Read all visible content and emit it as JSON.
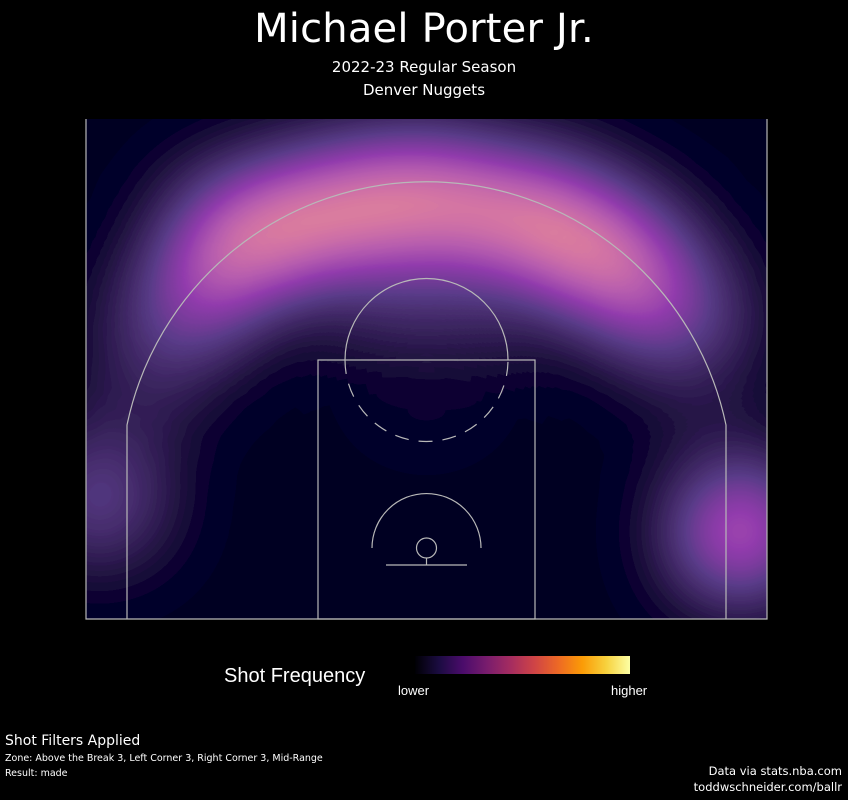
{
  "header": {
    "title": "Michael Porter Jr.",
    "season": "2022-23 Regular Season",
    "team": "Denver Nuggets"
  },
  "legend": {
    "title": "Shot Frequency",
    "low_label": "lower",
    "high_label": "higher",
    "colors": [
      "#000004",
      "#1b0c41",
      "#4a0c6b",
      "#781c6d",
      "#a52c60",
      "#cf4446",
      "#ed6925",
      "#fb9b06",
      "#f7d13d",
      "#fcffa4"
    ]
  },
  "filters": {
    "heading": "Shot Filters Applied",
    "zone_line": "Zone: Above the Break 3, Left Corner 3, Right Corner 3, Mid-Range",
    "result_line": "Result: made"
  },
  "credits": {
    "source": "Data via stats.nba.com",
    "site": "toddwschneider.com/ballr"
  },
  "chart_data": {
    "type": "heatmap",
    "title": "Shot Frequency",
    "units": "feet",
    "x_range": [
      -25,
      25
    ],
    "y_range": [
      0,
      37
    ],
    "hotspots": [
      {
        "x": -14,
        "y": 28,
        "intensity": 0.72
      },
      {
        "x": -7,
        "y": 30,
        "intensity": 0.78
      },
      {
        "x": 0,
        "y": 31,
        "intensity": 0.8
      },
      {
        "x": 8,
        "y": 29.5,
        "intensity": 0.95
      },
      {
        "x": 14,
        "y": 26.5,
        "intensity": 0.72
      },
      {
        "x": 19,
        "y": 22,
        "intensity": 0.4
      },
      {
        "x": -19,
        "y": 21,
        "intensity": 0.35
      },
      {
        "x": 23,
        "y": 6.5,
        "intensity": 0.82
      },
      {
        "x": -24,
        "y": 9,
        "intensity": 0.42
      },
      {
        "x": 0,
        "y": 18,
        "intensity": 0.12
      }
    ]
  }
}
